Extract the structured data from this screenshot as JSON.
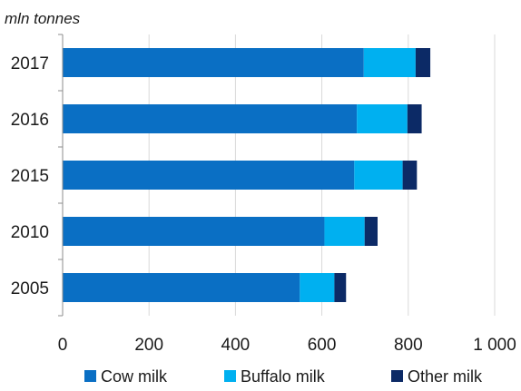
{
  "chart_data": {
    "type": "bar",
    "orientation": "horizontal",
    "stacked": true,
    "unit_label": "mln tonnes",
    "categories": [
      "2017",
      "2016",
      "2015",
      "2010",
      "2005"
    ],
    "series": [
      {
        "name": "Cow milk",
        "color": "#0a6fc4",
        "values": [
          697,
          681,
          675,
          606,
          549
        ]
      },
      {
        "name": "Buffalo milk",
        "color": "#00b0f0",
        "values": [
          120,
          117,
          112,
          93,
          80
        ]
      },
      {
        "name": "Other milk",
        "color": "#0c2a66",
        "values": [
          34,
          33,
          33,
          30,
          27
        ]
      }
    ],
    "xlim": [
      0,
      1000
    ],
    "xticks": [
      {
        "value": 0,
        "label": "0"
      },
      {
        "value": 200,
        "label": "200"
      },
      {
        "value": 400,
        "label": "400"
      },
      {
        "value": 600,
        "label": "600"
      },
      {
        "value": 800,
        "label": "800"
      },
      {
        "value": 1000,
        "label": "1 000"
      }
    ],
    "grid": true,
    "legend_position": "bottom"
  }
}
